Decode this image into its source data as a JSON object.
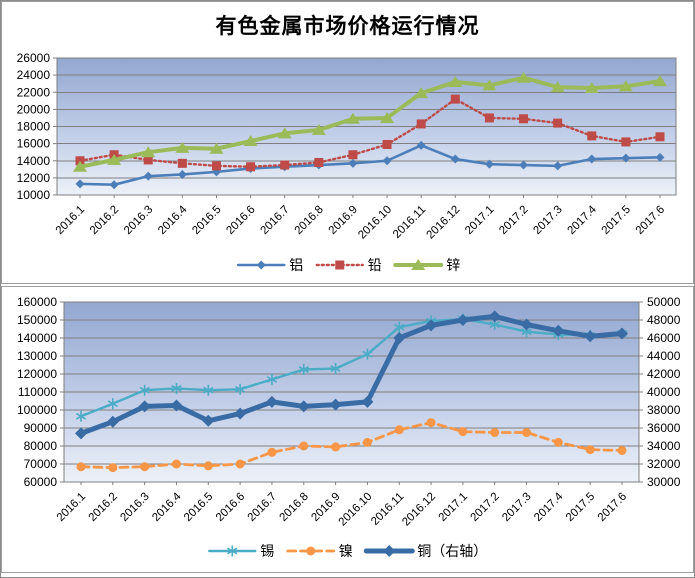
{
  "page": {
    "background": "#ffffff",
    "card_border": "#9e9e9e",
    "gridline_color": "#7f7f7f",
    "plot_gradient": [
      "#93A7D0",
      "#C5D1EA",
      "#EDF1F8"
    ]
  },
  "chart_data": [
    {
      "type": "line",
      "title": "有色金属市场价格运行情况",
      "categories": [
        "2016.1",
        "2016.2",
        "2016.3",
        "2016.4",
        "2016.5",
        "2016.6",
        "2016.7",
        "2016.8",
        "2016.9",
        "2016.10",
        "2016.11",
        "2016.12",
        "2017.1",
        "2017.2",
        "2017.3",
        "2017.4",
        "2017.5",
        "2017.6"
      ],
      "ylim": [
        10000,
        26000
      ],
      "ytick_step": 2000,
      "grid": true,
      "legend_position": "bottom",
      "series": [
        {
          "name": "铝",
          "color": "#4C7FBA",
          "marker": "diamond",
          "marker_size": 4.5,
          "line": "solid",
          "line_width": 2.6,
          "values": [
            11300,
            11200,
            12200,
            12400,
            12700,
            13100,
            13300,
            13500,
            13700,
            14000,
            15800,
            14200,
            13600,
            13500,
            13400,
            14200,
            14300,
            14400
          ]
        },
        {
          "name": "铅",
          "color": "#BE4B48",
          "marker": "square",
          "marker_size": 4.5,
          "line": "dotted",
          "line_width": 2.4,
          "values": [
            14000,
            14700,
            14100,
            13700,
            13400,
            13300,
            13500,
            13800,
            14700,
            15900,
            18300,
            21200,
            19000,
            18900,
            18400,
            16900,
            16200,
            16800
          ]
        },
        {
          "name": "锌",
          "color": "#9BBB59",
          "marker": "triangle",
          "marker_size": 6,
          "line": "solid",
          "line_width": 4,
          "values": [
            13300,
            14100,
            15000,
            15500,
            15400,
            16300,
            17200,
            17600,
            18900,
            19000,
            21900,
            23200,
            22800,
            23700,
            22600,
            22500,
            22700,
            23300
          ]
        }
      ]
    },
    {
      "type": "line",
      "title": "",
      "categories": [
        "2016.1",
        "2016.2",
        "2016.3",
        "2016.4",
        "2016.5",
        "2016.6",
        "2016.7",
        "2016.8",
        "2016.9",
        "2016.10",
        "2016.11",
        "2016.12",
        "2017.1",
        "2017.2",
        "2017.3",
        "2017.4",
        "2017.5",
        "2017.6"
      ],
      "ylim_left": [
        60000,
        160000
      ],
      "ytick_step_left": 10000,
      "ylim_right": [
        30000,
        50000
      ],
      "ytick_step_right": 2000,
      "grid": true,
      "legend_position": "bottom",
      "series": [
        {
          "name": "锡",
          "axis": "left",
          "color": "#4BACC6",
          "marker": "asterisk",
          "marker_size": 5.5,
          "line": "solid",
          "line_width": 2.4,
          "values": [
            96500,
            103500,
            111000,
            112000,
            111000,
            111500,
            117000,
            122500,
            123000,
            131000,
            146000,
            149500,
            150500,
            147500,
            143500,
            142000,
            141500,
            142500
          ]
        },
        {
          "name": "镍",
          "axis": "left",
          "color": "#F79646",
          "marker": "circle",
          "marker_size": 4.5,
          "line": "dashed",
          "line_width": 2.8,
          "values": [
            68500,
            68000,
            68500,
            70000,
            69000,
            70000,
            76500,
            80000,
            79500,
            82000,
            89000,
            93000,
            88000,
            87500,
            87500,
            82000,
            78000,
            77500
          ]
        },
        {
          "name": "铜（右轴）",
          "axis": "right",
          "color": "#396CA5",
          "marker": "diamond",
          "marker_size": 6,
          "line": "solid",
          "line_width": 5,
          "values": [
            35400,
            36700,
            38400,
            38500,
            36800,
            37600,
            38900,
            38400,
            38600,
            38900,
            46000,
            47400,
            48000,
            48400,
            47500,
            46800,
            46200,
            46500
          ]
        }
      ]
    }
  ]
}
